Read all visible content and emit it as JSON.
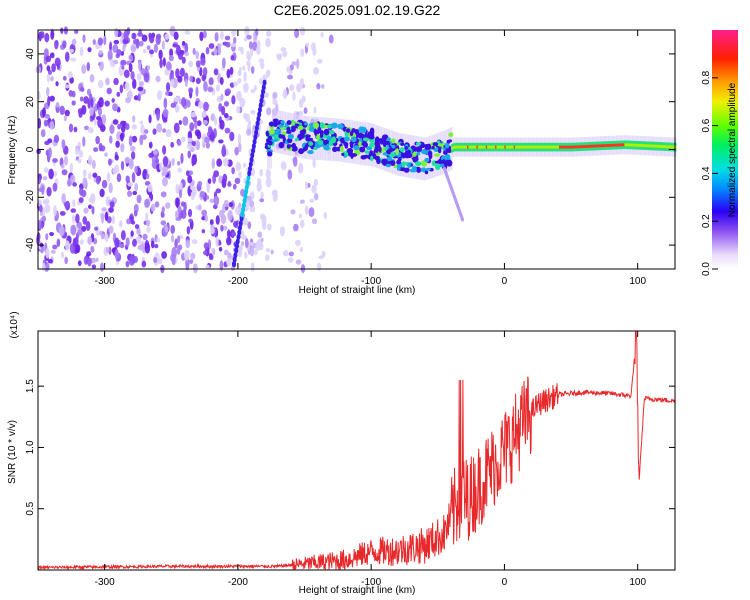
{
  "title": "C2E6.2025.091.02.19.G22",
  "chart_data": [
    {
      "type": "heatmap",
      "xlabel": "Height of straight line (km)",
      "ylabel": "Frequency (Hz)",
      "xlim": [
        -350,
        128
      ],
      "ylim": [
        -50,
        50
      ],
      "xticks": [
        -300,
        -200,
        -100,
        0,
        100
      ],
      "yticks": [
        -40,
        -20,
        0,
        20,
        40
      ],
      "colorbar": {
        "label": "Normalized spectral amplitude",
        "range": [
          0,
          1
        ],
        "ticks": [
          "0.0",
          "0.2",
          "0.4",
          "0.6",
          "0.8"
        ]
      },
      "features": {
        "noise_region_x": [
          -350,
          -140
        ],
        "streak": {
          "x": [
            -203,
            -180
          ],
          "y": [
            -48,
            28
          ]
        },
        "ridge": [
          {
            "x": -175,
            "y": 8
          },
          {
            "x": -150,
            "y": 5
          },
          {
            "x": -125,
            "y": 4
          },
          {
            "x": -100,
            "y": 2
          },
          {
            "x": -80,
            "y": -2
          },
          {
            "x": -60,
            "y": -4
          },
          {
            "x": -45,
            "y": -1
          },
          {
            "x": -38,
            "y": 1
          },
          {
            "x": -20,
            "y": 1
          },
          {
            "x": 0,
            "y": 1
          },
          {
            "x": 50,
            "y": 1
          },
          {
            "x": 90,
            "y": 2
          },
          {
            "x": 128,
            "y": 1
          }
        ]
      }
    },
    {
      "type": "line",
      "ylabel": "SNR (10 * v/v)",
      "xlabel": "Height of straight line (km)",
      "multiplier": "(x10⁴)",
      "xlim": [
        -350,
        128
      ],
      "ylim": [
        0,
        1.95
      ],
      "xticks": [
        -300,
        -200,
        -100,
        0,
        100
      ],
      "yticks": [
        "0.5",
        "1.0",
        "1.5"
      ],
      "series": [
        {
          "color": "#e8292b",
          "points": [
            {
              "x": -350,
              "y": 0.02
            },
            {
              "x": -250,
              "y": 0.03
            },
            {
              "x": -170,
              "y": 0.03
            },
            {
              "x": -150,
              "y": 0.05
            },
            {
              "x": -120,
              "y": 0.08
            },
            {
              "x": -100,
              "y": 0.15
            },
            {
              "x": -80,
              "y": 0.16
            },
            {
              "x": -60,
              "y": 0.2
            },
            {
              "x": -45,
              "y": 0.3
            },
            {
              "x": -35,
              "y": 0.55
            },
            {
              "x": -25,
              "y": 0.6
            },
            {
              "x": -15,
              "y": 0.75
            },
            {
              "x": -5,
              "y": 0.9
            },
            {
              "x": 5,
              "y": 1.05
            },
            {
              "x": 15,
              "y": 1.22
            },
            {
              "x": 25,
              "y": 1.35
            },
            {
              "x": 40,
              "y": 1.43
            },
            {
              "x": 60,
              "y": 1.45
            },
            {
              "x": 80,
              "y": 1.44
            },
            {
              "x": 95,
              "y": 1.42
            },
            {
              "x": 99,
              "y": 1.9
            },
            {
              "x": 101,
              "y": 0.72
            },
            {
              "x": 105,
              "y": 1.4
            },
            {
              "x": 128,
              "y": 1.38
            }
          ]
        }
      ]
    }
  ]
}
